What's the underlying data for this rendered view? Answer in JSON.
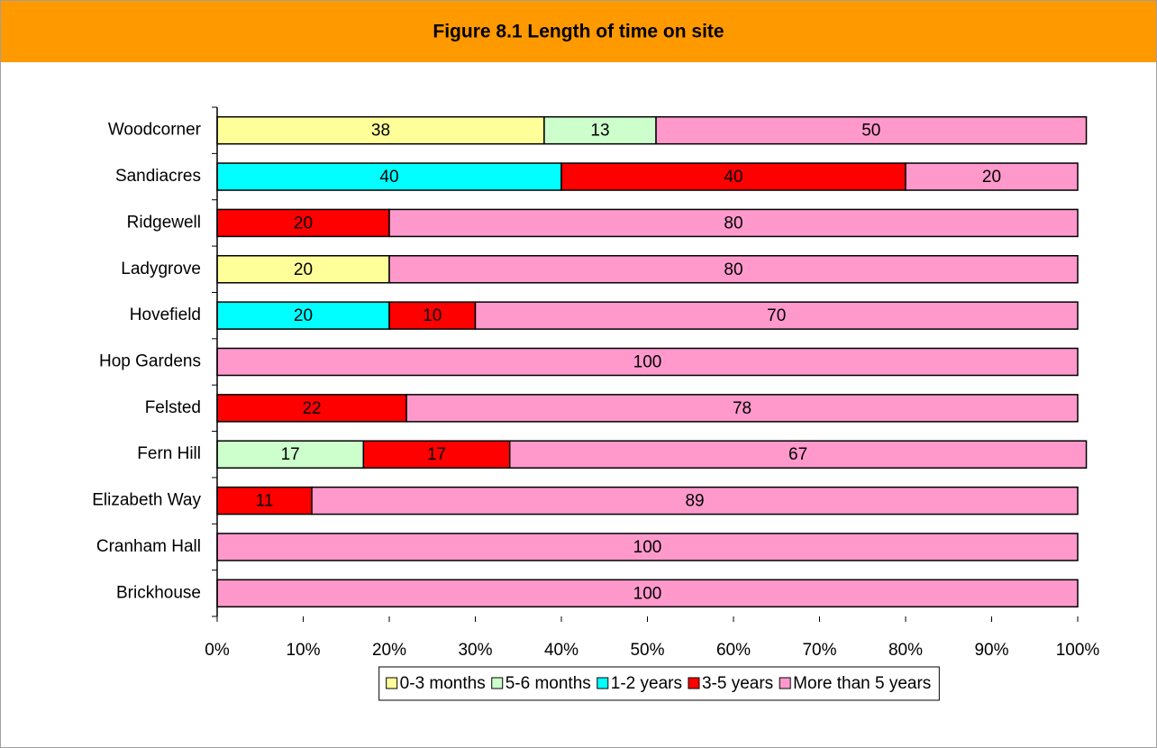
{
  "chart_data": {
    "type": "stacked-barh",
    "title": "Figure 8.1 Length of time on site",
    "categories": [
      "Woodcorner",
      "Sandiacres",
      "Ridgewell",
      "Ladygrove",
      "Hovefield",
      "Hop Gardens",
      "Felsted",
      "Fern Hill",
      "Elizabeth Way",
      "Cranham Hall",
      "Brickhouse"
    ],
    "series": [
      {
        "name": "0-3 months",
        "color": "#ffff99",
        "values": [
          38,
          null,
          null,
          20,
          null,
          null,
          null,
          null,
          null,
          null,
          null
        ]
      },
      {
        "name": "5-6 months",
        "color": "#ccffcc",
        "values": [
          13,
          null,
          null,
          null,
          null,
          null,
          null,
          17,
          null,
          null,
          null
        ]
      },
      {
        "name": "1-2 years",
        "color": "#00ffff",
        "values": [
          null,
          40,
          null,
          null,
          20,
          null,
          null,
          null,
          null,
          null,
          null
        ]
      },
      {
        "name": "3-5 years",
        "color": "#ff0000",
        "values": [
          null,
          40,
          20,
          null,
          10,
          null,
          22,
          17,
          11,
          null,
          null
        ]
      },
      {
        "name": "More than 5 years",
        "color": "#ff99cc",
        "values": [
          50,
          20,
          80,
          80,
          70,
          100,
          78,
          67,
          89,
          100,
          100
        ]
      }
    ],
    "xlim": [
      0,
      100
    ],
    "xticks": [
      {
        "value": 0,
        "label": "0%"
      },
      {
        "value": 10,
        "label": "10%"
      },
      {
        "value": 20,
        "label": "20%"
      },
      {
        "value": 30,
        "label": "30%"
      },
      {
        "value": 40,
        "label": "40%"
      },
      {
        "value": 50,
        "label": "50%"
      },
      {
        "value": 60,
        "label": "60%"
      },
      {
        "value": 70,
        "label": "70%"
      },
      {
        "value": 80,
        "label": "80%"
      },
      {
        "value": 90,
        "label": "90%"
      },
      {
        "value": 100,
        "label": "100%"
      }
    ],
    "legend": "bottom"
  }
}
